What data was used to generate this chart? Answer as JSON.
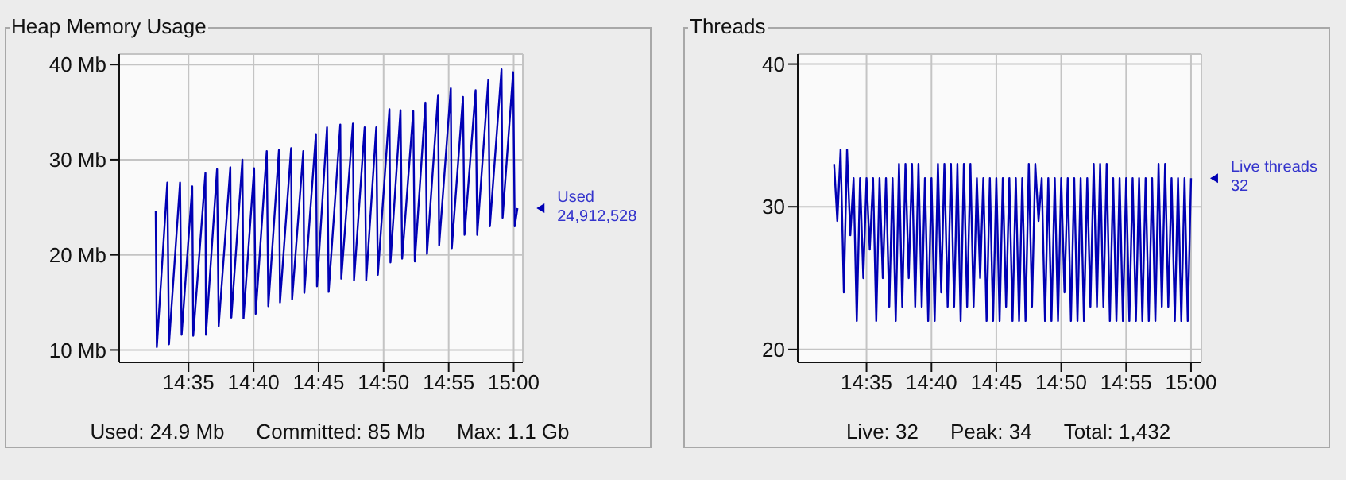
{
  "chart_data": [
    {
      "type": "line",
      "title": "Heap Memory Usage",
      "marker": "none",
      "grid": true,
      "xlim": [
        14.4945,
        15.0117
      ],
      "xticks": [
        {
          "value": 14.5833,
          "label": "14:35"
        },
        {
          "value": 14.6667,
          "label": "14:40"
        },
        {
          "value": 14.75,
          "label": "14:45"
        },
        {
          "value": 14.8333,
          "label": "14:50"
        },
        {
          "value": 14.9167,
          "label": "14:55"
        },
        {
          "value": 15,
          "label": "15:00"
        }
      ],
      "ylim": [
        8.7,
        41.1
      ],
      "yticks": [
        {
          "value": 10,
          "label": "10 Mb"
        },
        {
          "value": 20,
          "label": "20 Mb"
        },
        {
          "value": 30,
          "label": "30 Mb"
        },
        {
          "value": 40,
          "label": "40 Mb"
        }
      ],
      "series": [
        {
          "name": "Used",
          "color": "#0000b4",
          "x": [
            14.5413,
            14.5427,
            14.5562,
            14.5583,
            14.5725,
            14.5745,
            14.5881,
            14.5894,
            14.605,
            14.6057,
            14.6199,
            14.622,
            14.6369,
            14.6382,
            14.6524,
            14.6538,
            14.6674,
            14.6694,
            14.6836,
            14.6856,
            14.6992,
            14.7006,
            14.7148,
            14.7161,
            14.7304,
            14.7317,
            14.7466,
            14.748,
            14.7608,
            14.7629,
            14.7778,
            14.7791,
            14.794,
            14.7954,
            14.809,
            14.811,
            14.8239,
            14.8259,
            14.8408,
            14.8421,
            14.855,
            14.8571,
            14.8713,
            14.8733,
            14.8869,
            14.8889,
            14.9031,
            14.9045,
            14.9194,
            14.9207,
            14.935,
            14.937,
            14.9512,
            14.9533,
            14.9675,
            14.9695,
            14.9844,
            14.9858,
            14.9993,
            15.0013,
            15.0048
          ],
          "values": [
            24.6,
            10.3,
            27.6,
            10.6,
            27.6,
            11.6,
            27.2,
            11.5,
            28.6,
            11.6,
            29.0,
            12.5,
            29.2,
            13.4,
            30.0,
            13.3,
            29.1,
            13.8,
            30.9,
            14.6,
            31.0,
            15.0,
            31.2,
            15.3,
            30.9,
            16.0,
            32.7,
            16.7,
            33.4,
            16.1,
            33.7,
            17.5,
            33.8,
            17.3,
            33.4,
            17.3,
            33.4,
            17.9,
            35.3,
            19.2,
            35.2,
            19.6,
            35.1,
            19.3,
            36.0,
            20.1,
            36.8,
            21.0,
            37.5,
            20.7,
            36.6,
            22.1,
            37.3,
            22.1,
            38.4,
            23.0,
            39.5,
            23.9,
            39.2,
            23.0,
            24.9
          ]
        }
      ],
      "annotations": [
        {
          "text": "24,912,528",
          "x": 15.0048,
          "y": 24.9
        },
        "Used: 24.9 Mb",
        "Committed: 85 Mb",
        "Max: 1.1 Gb"
      ]
    },
    {
      "type": "line",
      "title": "Threads",
      "marker": "none",
      "grid": true,
      "xlim": [
        14.495,
        15.0133
      ],
      "xticks": [
        {
          "value": 14.5833,
          "label": "14:35"
        },
        {
          "value": 14.6667,
          "label": "14:40"
        },
        {
          "value": 14.75,
          "label": "14:45"
        },
        {
          "value": 14.8333,
          "label": "14:50"
        },
        {
          "value": 14.9167,
          "label": "14:55"
        },
        {
          "value": 15,
          "label": "15:00"
        }
      ],
      "ylim": [
        19.1,
        40.7
      ],
      "yticks": [
        20,
        30,
        40
      ],
      "series": [
        {
          "name": "Live threads",
          "color": "#0000b4",
          "x": [
            14.5417,
            14.5458,
            14.55,
            14.5542,
            14.5583,
            14.5625,
            14.5667,
            14.5708,
            14.575,
            14.5792,
            14.5833,
            14.5875,
            14.5917,
            14.5958,
            14.6,
            14.6042,
            14.6083,
            14.6125,
            14.6167,
            14.6208,
            14.625,
            14.6292,
            14.6333,
            14.6375,
            14.6417,
            14.6458,
            14.65,
            14.6542,
            14.6583,
            14.6625,
            14.6667,
            14.6708,
            14.675,
            14.6792,
            14.6833,
            14.6875,
            14.6917,
            14.6958,
            14.7,
            14.7042,
            14.7083,
            14.7125,
            14.7167,
            14.7208,
            14.725,
            14.7292,
            14.7333,
            14.7375,
            14.7417,
            14.7458,
            14.75,
            14.7542,
            14.7583,
            14.7625,
            14.7667,
            14.7708,
            14.775,
            14.7792,
            14.7833,
            14.7875,
            14.7917,
            14.7958,
            14.8,
            14.8042,
            14.8083,
            14.8125,
            14.8167,
            14.8208,
            14.825,
            14.8292,
            14.8333,
            14.8375,
            14.8417,
            14.8458,
            14.85,
            14.8542,
            14.8583,
            14.8625,
            14.8667,
            14.8708,
            14.875,
            14.8792,
            14.8833,
            14.8875,
            14.8917,
            14.8958,
            14.9,
            14.9042,
            14.9083,
            14.9125,
            14.9167,
            14.9208,
            14.925,
            14.9292,
            14.9333,
            14.9375,
            14.9417,
            14.9458,
            14.95,
            14.9542,
            14.9583,
            14.9625,
            14.9667,
            14.9708,
            14.975,
            14.9792,
            14.9833,
            14.9875,
            14.9917,
            14.9958,
            15.0
          ],
          "values": [
            33,
            29,
            34,
            24,
            34,
            28,
            32,
            22,
            32,
            25,
            32,
            27,
            32,
            22,
            32,
            25,
            32,
            23,
            32,
            22,
            33,
            23,
            33,
            25,
            33,
            23,
            33,
            23,
            32,
            22,
            32,
            22,
            33,
            24,
            33,
            23,
            33,
            23,
            33,
            22,
            33,
            23,
            33,
            23,
            32,
            25,
            32,
            22,
            32,
            22,
            32,
            22,
            32,
            23,
            32,
            22,
            32,
            22,
            32,
            22,
            33,
            23,
            33,
            29,
            32,
            22,
            32,
            22,
            32,
            22,
            32,
            24,
            32,
            22,
            32,
            22,
            32,
            22,
            32,
            23,
            33,
            23,
            33,
            23,
            33,
            22,
            32,
            22,
            32,
            22,
            32,
            22,
            32,
            22,
            32,
            22,
            32,
            22,
            32,
            22,
            33,
            23,
            33,
            23,
            32,
            22,
            32,
            22,
            32,
            22,
            32
          ]
        }
      ],
      "annotations": [
        {
          "text": "32",
          "x": 15.0,
          "y": 32
        },
        "Live: 32",
        "Peak: 34",
        "Total: 1,432"
      ]
    }
  ]
}
